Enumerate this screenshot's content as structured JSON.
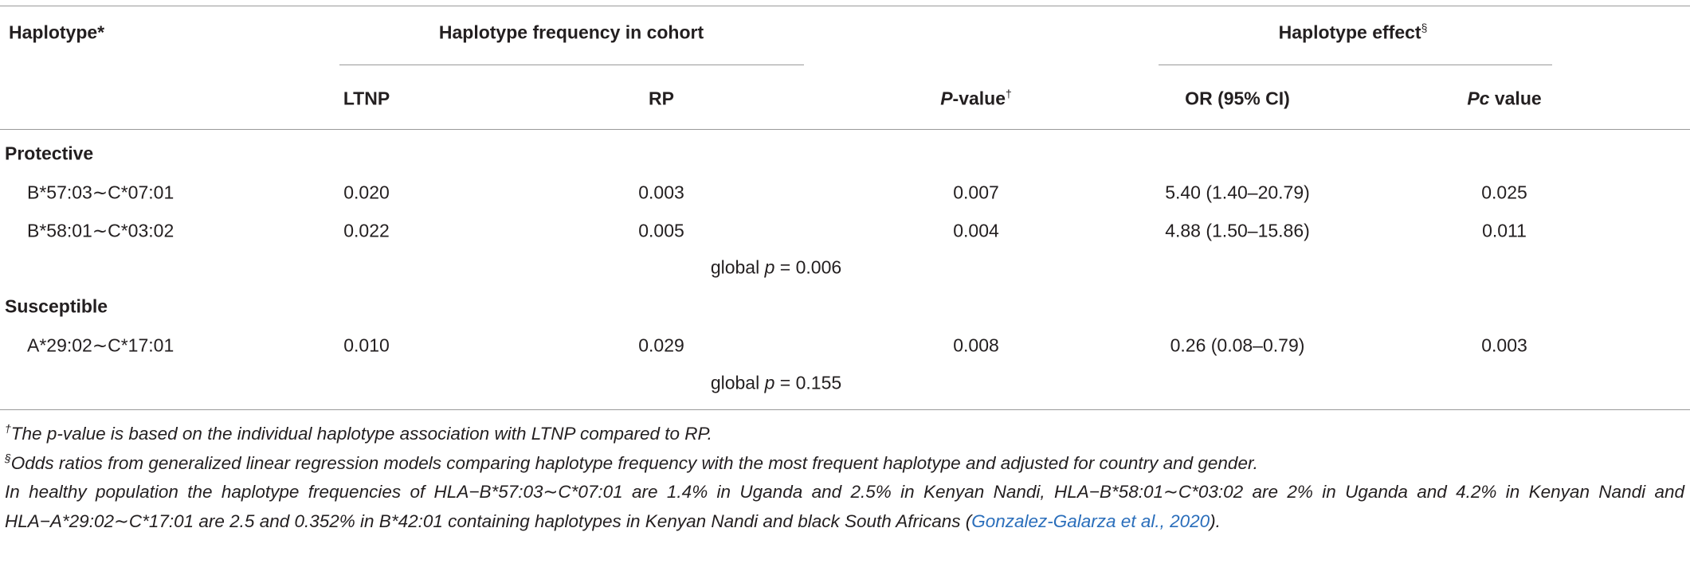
{
  "table": {
    "stub_header": "Haplotype*",
    "group_headers": [
      {
        "text": "Haplotype frequency in cohort"
      },
      {
        "text": "Haplotype effect",
        "sup": "§"
      }
    ],
    "columns": [
      {
        "text": "LTNP"
      },
      {
        "text": "RP"
      },
      {
        "italic": "P",
        "text": "-value",
        "sup": "†"
      },
      {
        "text": "OR (95% CI)"
      },
      {
        "italic": "Pc",
        "text": "value"
      }
    ],
    "groups": [
      {
        "label": "Protective",
        "rows": [
          {
            "haplotype": "B*57:03∼C*07:01",
            "cells": [
              "0.020",
              "0.003",
              "0.007",
              "5.40 (1.40–20.79)",
              "0.025"
            ]
          },
          {
            "haplotype": "B*58:01∼C*03:02",
            "cells": [
              "0.022",
              "0.005",
              "0.004",
              "4.88 (1.50–15.86)",
              "0.011"
            ]
          }
        ],
        "global": [
          "global",
          "p",
          "= 0.006"
        ]
      },
      {
        "label": "Susceptible",
        "rows": [
          {
            "haplotype": "A*29:02∼C*17:01",
            "cells": [
              "0.010",
              "0.029",
              "0.008",
              "0.26 (0.08–0.79)",
              "0.003"
            ]
          }
        ],
        "global": [
          "global",
          "p",
          "= 0.155"
        ]
      }
    ]
  },
  "footnotes": [
    {
      "sup": "†",
      "text": "The p-value is based on the individual haplotype association with LTNP compared to RP."
    },
    {
      "sup": "§",
      "text": "Odds ratios from generalized linear regression models comparing haplotype frequency with the most frequent haplotype and adjusted for country and gender."
    }
  ],
  "note": {
    "text": "In healthy population the haplotype frequencies of HLA−B*57:03∼C*07:01 are 1.4% in Uganda and 2.5% in Kenyan Nandi, HLA−B*58:01∼C*03:02 are 2% in Uganda and 4.2% in Kenyan Nandi and HLA−A*29:02∼C*17:01 are 2.5 and 0.352% in B*42:01 containing haplotypes in Kenyan Nandi and black South Africans (",
    "citation": "Gonzalez-Galarza et al., 2020",
    "end": ")."
  }
}
